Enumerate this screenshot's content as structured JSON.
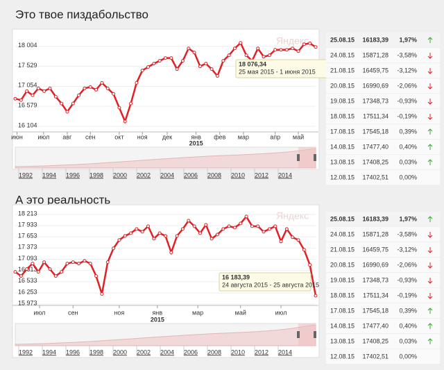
{
  "chart_data": [
    {
      "type": "line",
      "title": "Это твое пиздабольство",
      "color": "#e31e24",
      "values": [
        16759,
        16726,
        16939,
        16841,
        17005,
        16939,
        17005,
        16808,
        16644,
        16448,
        16644,
        16841,
        17005,
        17038,
        16972,
        17136,
        17005,
        16874,
        16546,
        16219,
        16644,
        17136,
        17431,
        17513,
        17594,
        17660,
        17726,
        17726,
        17463,
        17660,
        17955,
        17857,
        17529,
        17594,
        17463,
        17300,
        17660,
        17791,
        17955,
        18086,
        17791,
        17660,
        17955,
        17758,
        17791,
        17922,
        17922,
        17922,
        17955,
        17889,
        18053,
        18076,
        17988
      ],
      "xlim": [
        0,
        52
      ],
      "xticks": [
        {
          "value": 0.3,
          "label": "июн"
        },
        {
          "value": 4.9,
          "label": "июл"
        },
        {
          "value": 9,
          "label": "авг"
        },
        {
          "value": 13,
          "label": "сен"
        },
        {
          "value": 18,
          "label": "окт"
        },
        {
          "value": 22,
          "label": "ноя"
        },
        {
          "value": 26.3,
          "label": "дек"
        },
        {
          "value": 31.3,
          "label": "янв"
        },
        {
          "value": 35.4,
          "label": "фев"
        },
        {
          "value": 39.5,
          "label": "мар"
        },
        {
          "value": 45,
          "label": "апр"
        },
        {
          "value": 49,
          "label": "май"
        }
      ],
      "year_label": "2015",
      "ylim": [
        15970,
        18380
      ],
      "yticks": [
        {
          "value": 16104,
          "label": "16 104"
        },
        {
          "value": 16579,
          "label": "16 579"
        },
        {
          "value": 17054,
          "label": "17 054"
        },
        {
          "value": 17529,
          "label": "17 529"
        },
        {
          "value": 18004,
          "label": "18 004"
        }
      ],
      "grid": true,
      "tooltip": {
        "value": "18 076,34",
        "dates": "25 мая 2015 - 1 июня 2015"
      },
      "watermark": "Яндекс",
      "navigator_labels": [
        "1992",
        "1994",
        "1996",
        "1998",
        "2000",
        "2002",
        "2004",
        "2006",
        "2008",
        "2010",
        "2012",
        "2014"
      ]
    },
    {
      "type": "line",
      "title": "А это реальность",
      "color": "#e31e24",
      "values": [
        16779,
        16675,
        16848,
        16986,
        16779,
        17021,
        16848,
        16675,
        16779,
        16986,
        17021,
        16986,
        17055,
        16986,
        16675,
        16226,
        17021,
        17366,
        17574,
        17677,
        17746,
        17850,
        17781,
        17919,
        17608,
        17746,
        17677,
        17263,
        17677,
        17850,
        18057,
        17919,
        17746,
        17954,
        17608,
        17712,
        17850,
        17919,
        17885,
        17988,
        18161,
        17919,
        17919,
        17781,
        17850,
        17919,
        17539,
        17850,
        17643,
        17574,
        17332,
        16952,
        16183
      ],
      "xlim": [
        0,
        52
      ],
      "xticks": [
        {
          "value": 4.2,
          "label": "июл"
        },
        {
          "value": 10,
          "label": "сен"
        },
        {
          "value": 18,
          "label": "ноя"
        },
        {
          "value": 24.6,
          "label": "янв"
        },
        {
          "value": 31.6,
          "label": "мар"
        },
        {
          "value": 39,
          "label": "май"
        },
        {
          "value": 46,
          "label": "июл"
        }
      ],
      "year_label": "2015",
      "ylim": [
        15940,
        18420
      ],
      "yticks": [
        {
          "value": 15973,
          "label": "15 973"
        },
        {
          "value": 16253,
          "label": "16 253"
        },
        {
          "value": 16533,
          "label": "16 533"
        },
        {
          "value": 16813,
          "label": "16 813"
        },
        {
          "value": 17093,
          "label": "17 093"
        },
        {
          "value": 17373,
          "label": "17 373"
        },
        {
          "value": 17653,
          "label": "17 653"
        },
        {
          "value": 17933,
          "label": "17 933"
        },
        {
          "value": 18213,
          "label": "18 213"
        }
      ],
      "grid": true,
      "tooltip": {
        "value": "16 183,39",
        "dates": "24 августа 2015 - 25 августа 2015"
      },
      "watermark": "Яндекс",
      "navigator_labels": [
        "1992",
        "1994",
        "1996",
        "1998",
        "2000",
        "2002",
        "2004",
        "2006",
        "2008",
        "2010",
        "2012",
        "2014"
      ]
    }
  ],
  "tables": [
    {
      "rows": [
        [
          "25.08.15",
          "16183,39",
          "1,97%"
        ],
        [
          "24.08.15",
          "15871,28",
          "-3,58%"
        ],
        [
          "21.08.15",
          "16459,75",
          "-3,12%"
        ],
        [
          "20.08.15",
          "16990,69",
          "-2,06%"
        ],
        [
          "19.08.15",
          "17348,73",
          "-0,93%"
        ],
        [
          "18.08.15",
          "17511,34",
          "-0,19%"
        ],
        [
          "17.08.15",
          "17545,18",
          "0,39%"
        ],
        [
          "14.08.15",
          "17477,40",
          "0,40%"
        ],
        [
          "13.08.15",
          "17408,25",
          "0,03%"
        ],
        [
          "12.08.15",
          "17402,51",
          "0,00%"
        ]
      ]
    },
    {
      "rows": [
        [
          "25.08.15",
          "16183,39",
          "1,97%"
        ],
        [
          "24.08.15",
          "15871,28",
          "-3,58%"
        ],
        [
          "21.08.15",
          "16459,75",
          "-3,12%"
        ],
        [
          "20.08.15",
          "16990,69",
          "-2,06%"
        ],
        [
          "19.08.15",
          "17348,73",
          "-0,93%"
        ],
        [
          "18.08.15",
          "17511,34",
          "-0,19%"
        ],
        [
          "17.08.15",
          "17545,18",
          "0,39%"
        ],
        [
          "14.08.15",
          "17477,40",
          "0,40%"
        ],
        [
          "13.08.15",
          "17408,25",
          "0,03%"
        ],
        [
          "12.08.15",
          "17402,51",
          "0,00%"
        ]
      ]
    }
  ]
}
